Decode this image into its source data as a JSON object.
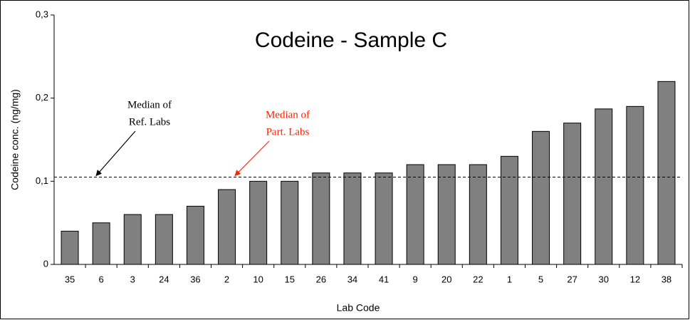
{
  "chart_data": {
    "type": "bar",
    "title": "Codeine - Sample C",
    "y_label": "Codeine conc. (ng/mg)",
    "x_label": "Lab Code",
    "categories": [
      "35",
      "6",
      "3",
      "24",
      "36",
      "2",
      "10",
      "15",
      "26",
      "34",
      "41",
      "9",
      "20",
      "22",
      "1",
      "5",
      "27",
      "30",
      "12",
      "38"
    ],
    "values": [
      0.04,
      0.05,
      0.06,
      0.06,
      0.07,
      0.09,
      0.1,
      0.1,
      0.11,
      0.11,
      0.11,
      0.12,
      0.12,
      0.12,
      0.13,
      0.16,
      0.17,
      0.187,
      0.19,
      0.22
    ],
    "color": "#808080",
    "ylim": [
      0,
      0.3
    ],
    "yticks": [
      0,
      {
        "value": 0.1,
        "label": "0,1"
      },
      {
        "value": 0.2,
        "label": "0,2"
      },
      {
        "value": 0.3,
        "label": "0,3"
      }
    ],
    "reference_line": 0.105,
    "annotations": [
      {
        "lines": [
          "Median of",
          "Ref. Labs"
        ],
        "color": "#000000"
      },
      {
        "lines": [
          "Median of",
          "Part. Labs"
        ],
        "color": "#ff2000"
      }
    ]
  }
}
